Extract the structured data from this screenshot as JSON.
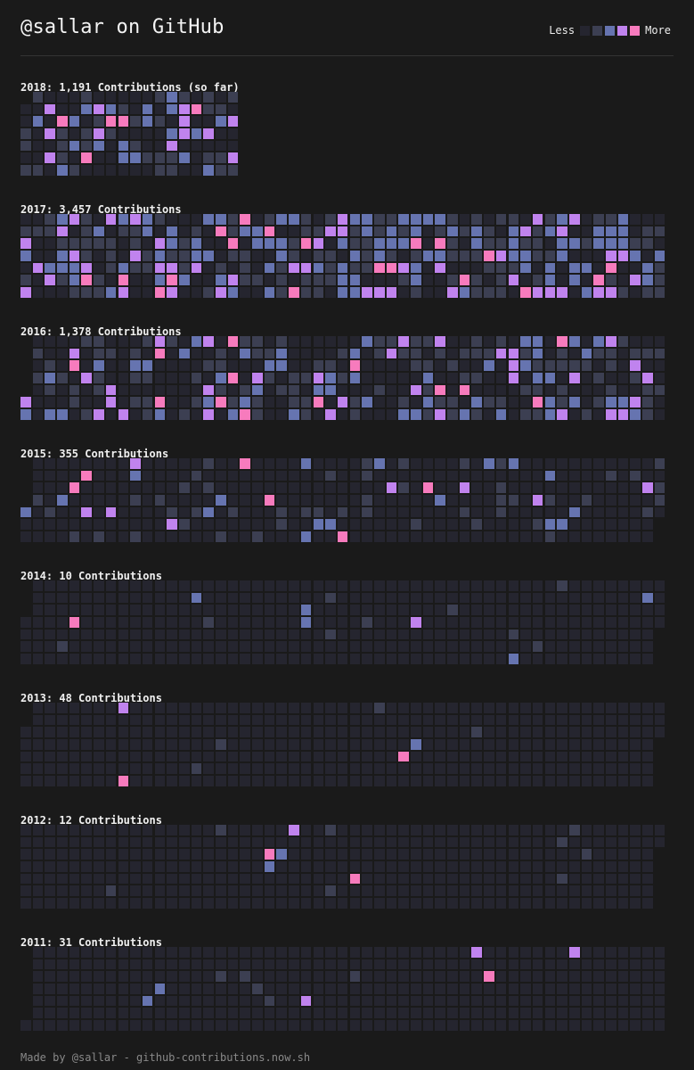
{
  "header": {
    "title": "@sallar on GitHub",
    "legend_less": "Less",
    "legend_more": "More",
    "levels": [
      {
        "name": "level-0",
        "color": "#25252f"
      },
      {
        "name": "level-1",
        "color": "#3c3f52"
      },
      {
        "name": "level-2",
        "color": "#6674b0"
      },
      {
        "name": "level-3",
        "color": "#c083ee"
      },
      {
        "name": "level-4",
        "color": "#f77bbd"
      }
    ]
  },
  "years": [
    {
      "title": "2018: 1,191 Contributions (so far)",
      "weeks": 18,
      "first_day": 1,
      "last_day_count": 7,
      "activity": "high",
      "seed": 2018
    },
    {
      "title": "2017: 3,457 Contributions",
      "weeks": 53,
      "first_day": 0,
      "last_day_count": 7,
      "activity": "veryhigh",
      "seed": 2017
    },
    {
      "title": "2016: 1,378 Contributions",
      "weeks": 53,
      "first_day": 5,
      "last_day_count": 7,
      "activity": "high",
      "seed": 2016
    },
    {
      "title": "2015: 355 Contributions",
      "weeks": 53,
      "first_day": 4,
      "last_day_count": 5,
      "activity": "medium",
      "seed": 2015
    },
    {
      "title": "2014: 10 Contributions",
      "weeks": 53,
      "first_day": 3,
      "last_day_count": 4,
      "activity": "sparse",
      "seed": 2014
    },
    {
      "title": "2013: 48 Contributions",
      "weeks": 53,
      "first_day": 2,
      "last_day_count": 3,
      "activity": "sparse",
      "seed": 2013
    },
    {
      "title": "2012: 12 Contributions",
      "weeks": 53,
      "first_day": 0,
      "last_day_count": 2,
      "activity": "sparse",
      "seed": 2012
    },
    {
      "title": "2011: 31 Contributions",
      "weeks": 53,
      "first_day": 6,
      "last_day_count": 7,
      "activity": "sparse",
      "seed": 2011
    }
  ],
  "footer": {
    "text": "Made by @sallar - github-contributions.now.sh"
  }
}
